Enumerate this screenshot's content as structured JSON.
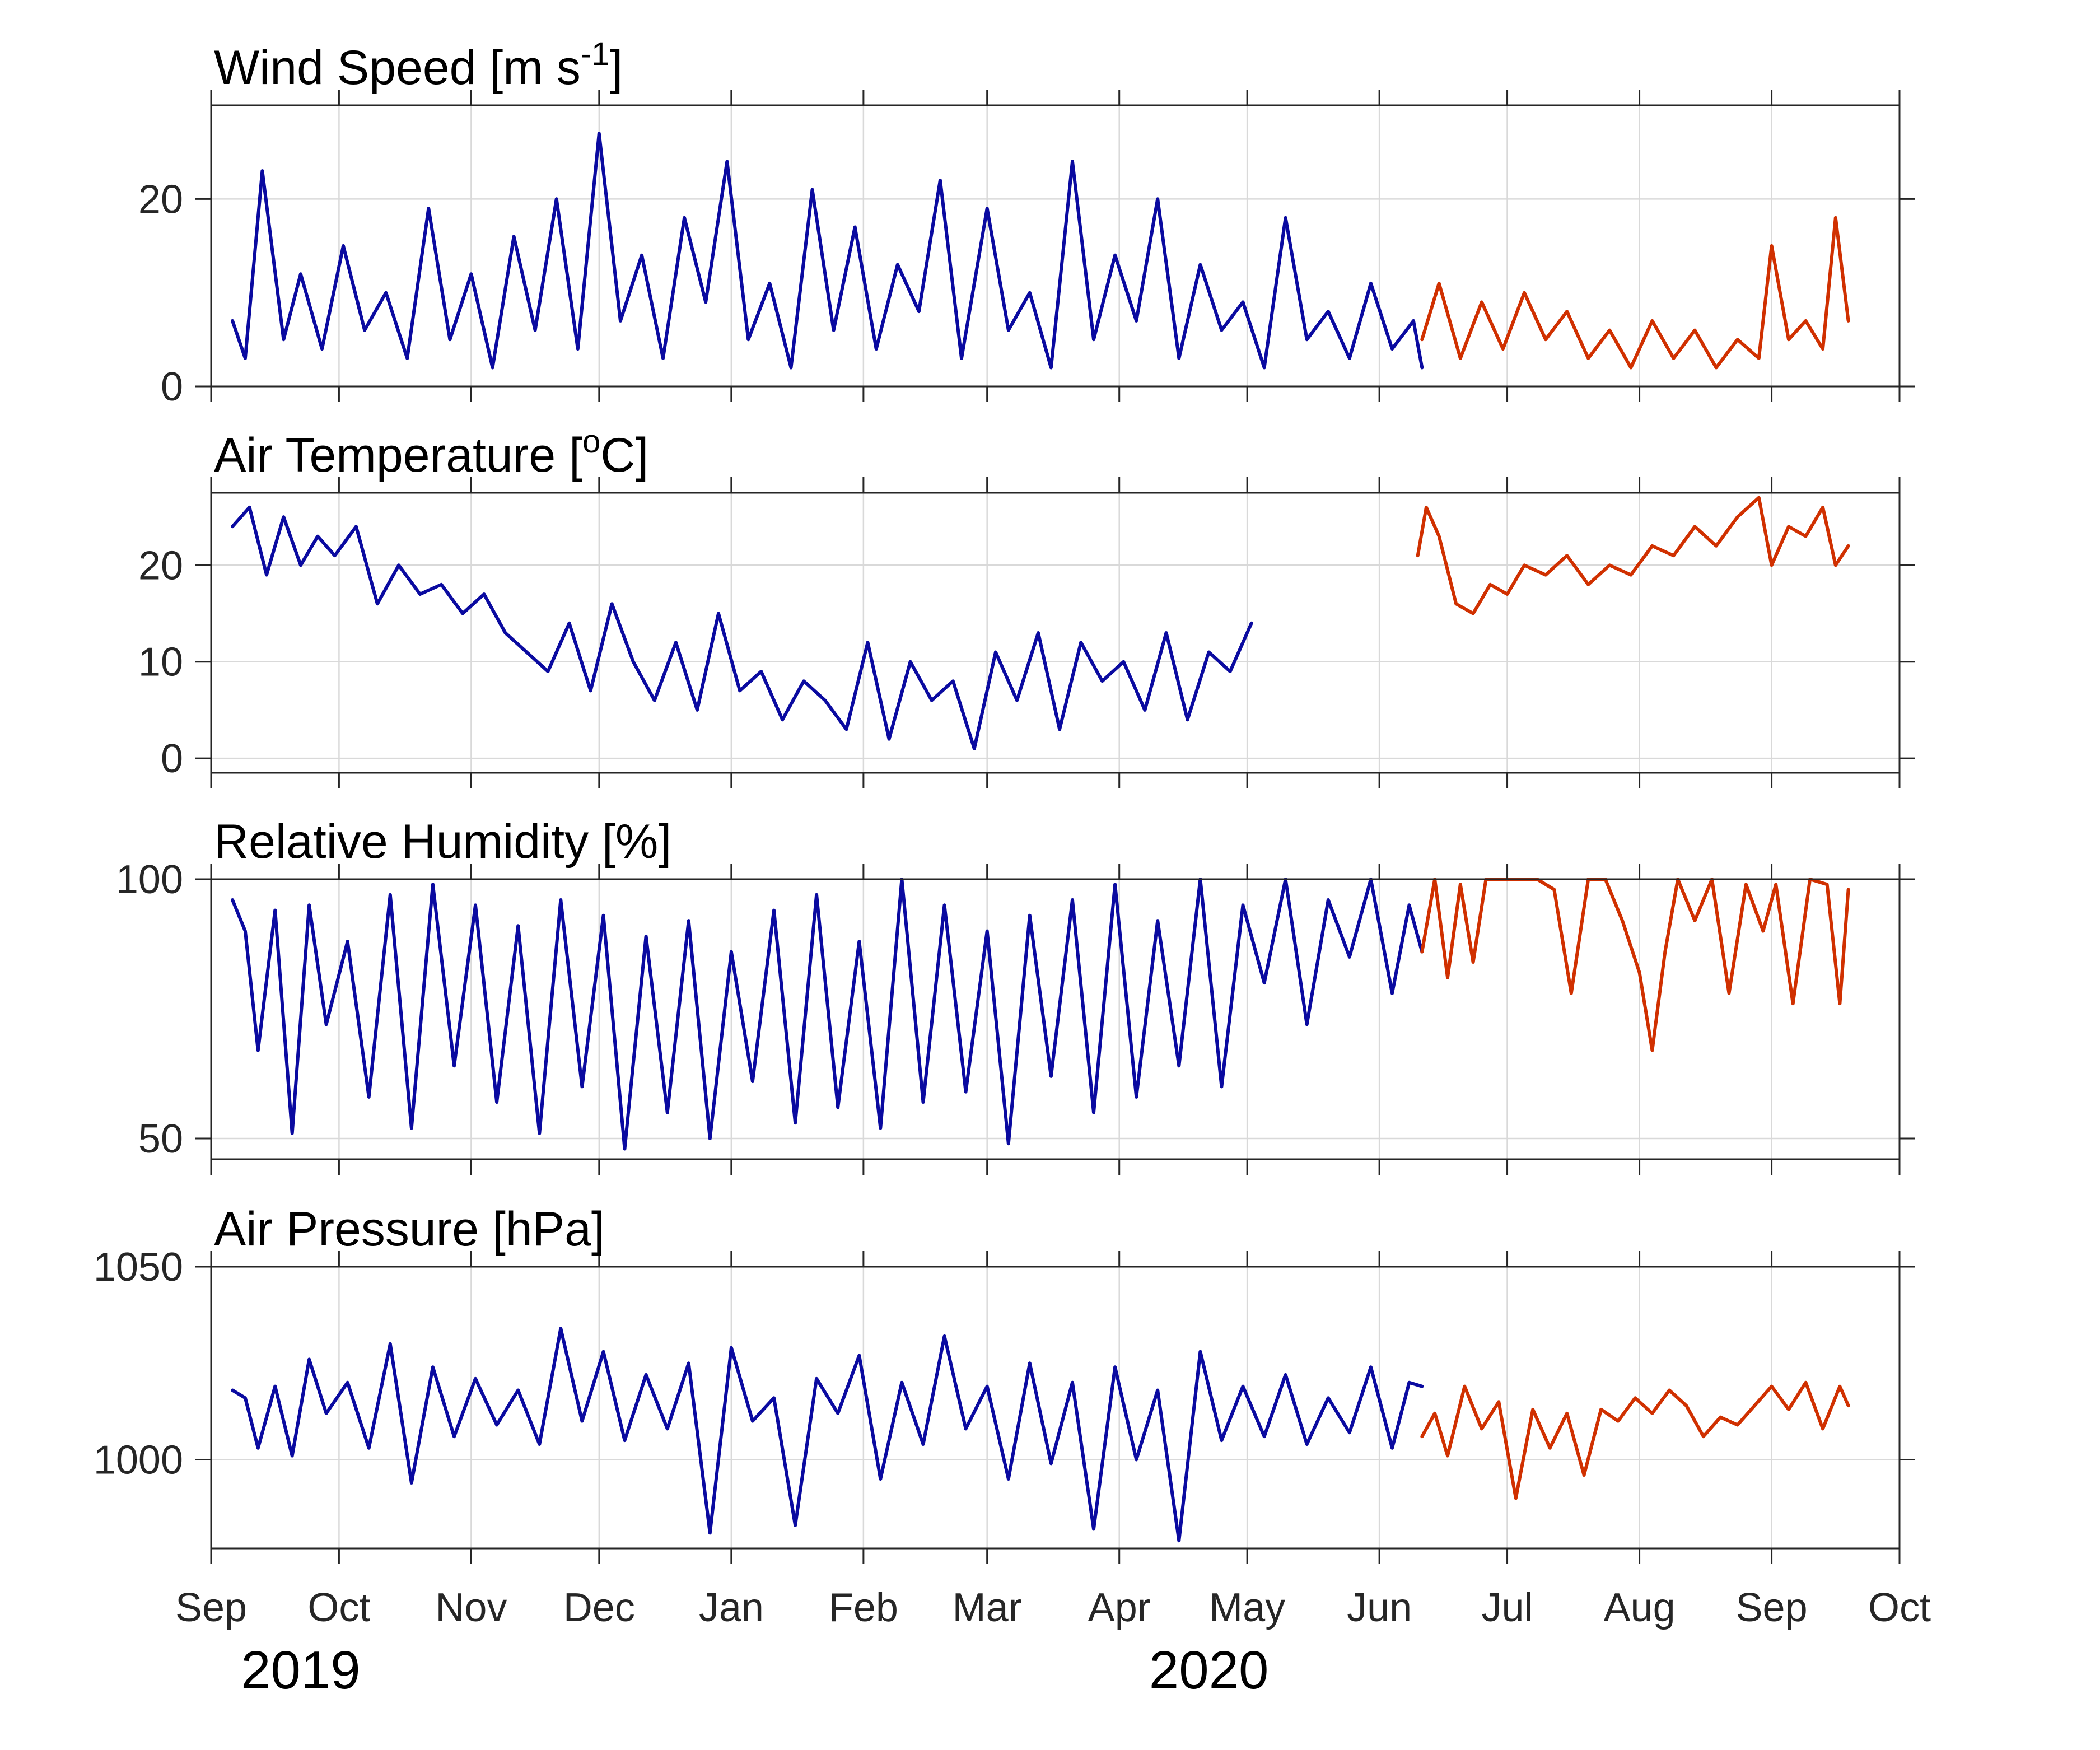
{
  "colors": {
    "station_1": "#0a0aa0",
    "station_2": "#d03000"
  },
  "x_axis": {
    "month_ticks": [
      "Sep",
      "Oct",
      "Nov",
      "Dec",
      "Jan",
      "Feb",
      "Mar",
      "Apr",
      "May",
      "Jun",
      "Jul",
      "Aug",
      "Sep",
      "Oct"
    ],
    "month_dates": [
      "2019-09-01",
      "2019-10-01",
      "2019-11-01",
      "2019-12-01",
      "2020-01-01",
      "2020-02-01",
      "2020-03-01",
      "2020-04-01",
      "2020-05-01",
      "2020-06-01",
      "2020-07-01",
      "2020-08-01",
      "2020-09-01",
      "2020-10-01"
    ],
    "year_labels": [
      {
        "label": "2019",
        "date": "2019-09-22"
      },
      {
        "label": "2020",
        "date": "2020-04-22"
      }
    ],
    "xlim": [
      "2019-09-01",
      "2020-10-01"
    ]
  },
  "chart_data": [
    {
      "type": "line",
      "title_main": "Wind Speed [m s",
      "title_sup": "-1",
      "title_end": "]",
      "ylim": [
        0,
        30
      ],
      "yticks": [
        0,
        20
      ],
      "series": [
        {
          "color": "station_1",
          "x": [
            "2019-09-06",
            "2019-09-09",
            "2019-09-13",
            "2019-09-18",
            "2019-09-22",
            "2019-09-27",
            "2019-10-02",
            "2019-10-07",
            "2019-10-12",
            "2019-10-17",
            "2019-10-22",
            "2019-10-27",
            "2019-11-01",
            "2019-11-06",
            "2019-11-11",
            "2019-11-16",
            "2019-11-21",
            "2019-11-26",
            "2019-12-01",
            "2019-12-06",
            "2019-12-11",
            "2019-12-16",
            "2019-12-21",
            "2019-12-26",
            "2019-12-31",
            "2020-01-05",
            "2020-01-10",
            "2020-01-15",
            "2020-01-20",
            "2020-01-25",
            "2020-01-30",
            "2020-02-04",
            "2020-02-09",
            "2020-02-14",
            "2020-02-19",
            "2020-02-24",
            "2020-03-01",
            "2020-03-06",
            "2020-03-11",
            "2020-03-16",
            "2020-03-21",
            "2020-03-26",
            "2020-03-31",
            "2020-04-05",
            "2020-04-10",
            "2020-04-15",
            "2020-04-20",
            "2020-04-25",
            "2020-04-30",
            "2020-05-05",
            "2020-05-10",
            "2020-05-15",
            "2020-05-20",
            "2020-05-25",
            "2020-05-30",
            "2020-06-04",
            "2020-06-09",
            "2020-06-11"
          ],
          "y": [
            7,
            3,
            23,
            5,
            12,
            4,
            15,
            6,
            10,
            3,
            19,
            5,
            12,
            2,
            16,
            6,
            20,
            4,
            27,
            7,
            14,
            3,
            18,
            9,
            24,
            5,
            11,
            2,
            21,
            6,
            17,
            4,
            13,
            8,
            22,
            3,
            19,
            6,
            10,
            2,
            24,
            5,
            14,
            7,
            20,
            3,
            13,
            6,
            9,
            2,
            18,
            5,
            8,
            3,
            11,
            4,
            7,
            2
          ]
        },
        {
          "color": "station_2",
          "x": [
            "2020-06-11",
            "2020-06-15",
            "2020-06-20",
            "2020-06-25",
            "2020-06-30",
            "2020-07-05",
            "2020-07-10",
            "2020-07-15",
            "2020-07-20",
            "2020-07-25",
            "2020-07-30",
            "2020-08-04",
            "2020-08-09",
            "2020-08-14",
            "2020-08-19",
            "2020-08-24",
            "2020-08-29",
            "2020-09-01",
            "2020-09-05",
            "2020-09-09",
            "2020-09-13",
            "2020-09-16",
            "2020-09-19"
          ],
          "y": [
            5,
            11,
            3,
            9,
            4,
            10,
            5,
            8,
            3,
            6,
            2,
            7,
            3,
            6,
            2,
            5,
            3,
            15,
            5,
            7,
            4,
            18,
            7
          ]
        }
      ]
    },
    {
      "type": "line",
      "title_main": "Air Temperature [",
      "title_sup": "o",
      "title_end": "C]",
      "ylim": [
        -1.5,
        27.5
      ],
      "yticks": [
        0,
        10,
        20
      ],
      "series": [
        {
          "color": "station_1",
          "x": [
            "2019-09-06",
            "2019-09-10",
            "2019-09-14",
            "2019-09-18",
            "2019-09-22",
            "2019-09-26",
            "2019-09-30",
            "2019-10-05",
            "2019-10-10",
            "2019-10-15",
            "2019-10-20",
            "2019-10-25",
            "2019-10-30",
            "2019-11-04",
            "2019-11-09",
            "2019-11-14",
            "2019-11-19",
            "2019-11-24",
            "2019-11-29",
            "2019-12-04",
            "2019-12-09",
            "2019-12-14",
            "2019-12-19",
            "2019-12-24",
            "2019-12-29",
            "2020-01-03",
            "2020-01-08",
            "2020-01-13",
            "2020-01-18",
            "2020-01-23",
            "2020-01-28",
            "2020-02-02",
            "2020-02-07",
            "2020-02-12",
            "2020-02-17",
            "2020-02-22",
            "2020-02-27",
            "2020-03-03",
            "2020-03-08",
            "2020-03-13",
            "2020-03-18",
            "2020-03-23",
            "2020-03-28",
            "2020-04-02",
            "2020-04-07",
            "2020-04-12",
            "2020-04-17",
            "2020-04-22",
            "2020-04-27",
            "2020-05-02"
          ],
          "y": [
            24,
            26,
            19,
            25,
            20,
            23,
            21,
            24,
            16,
            20,
            17,
            18,
            15,
            17,
            13,
            11,
            9,
            14,
            7,
            16,
            10,
            6,
            12,
            5,
            15,
            7,
            9,
            4,
            8,
            6,
            3,
            12,
            2,
            10,
            6,
            8,
            1,
            11,
            6,
            13,
            3,
            12,
            8,
            10,
            5,
            13,
            4,
            11,
            9,
            14
          ]
        },
        {
          "color": "station_2",
          "x": [
            "2020-06-10",
            "2020-06-12",
            "2020-06-15",
            "2020-06-19",
            "2020-06-23",
            "2020-06-27",
            "2020-07-01",
            "2020-07-05",
            "2020-07-10",
            "2020-07-15",
            "2020-07-20",
            "2020-07-25",
            "2020-07-30",
            "2020-08-04",
            "2020-08-09",
            "2020-08-14",
            "2020-08-19",
            "2020-08-24",
            "2020-08-29",
            "2020-09-01",
            "2020-09-05",
            "2020-09-09",
            "2020-09-13",
            "2020-09-16",
            "2020-09-19"
          ],
          "y": [
            21,
            26,
            23,
            16,
            15,
            18,
            17,
            20,
            19,
            21,
            18,
            20,
            19,
            22,
            21,
            24,
            22,
            25,
            27,
            20,
            24,
            23,
            26,
            20,
            22
          ]
        }
      ]
    },
    {
      "type": "line",
      "title_main": "Relative Humidity [%]",
      "title_sup": "",
      "title_end": "",
      "ylim": [
        46,
        100
      ],
      "yticks": [
        50,
        100
      ],
      "series": [
        {
          "color": "station_1",
          "x": [
            "2019-09-06",
            "2019-09-09",
            "2019-09-12",
            "2019-09-16",
            "2019-09-20",
            "2019-09-24",
            "2019-09-28",
            "2019-10-03",
            "2019-10-08",
            "2019-10-13",
            "2019-10-18",
            "2019-10-23",
            "2019-10-28",
            "2019-11-02",
            "2019-11-07",
            "2019-11-12",
            "2019-11-17",
            "2019-11-22",
            "2019-11-27",
            "2019-12-02",
            "2019-12-07",
            "2019-12-12",
            "2019-12-17",
            "2019-12-22",
            "2019-12-27",
            "2020-01-01",
            "2020-01-06",
            "2020-01-11",
            "2020-01-16",
            "2020-01-21",
            "2020-01-26",
            "2020-01-31",
            "2020-02-05",
            "2020-02-10",
            "2020-02-15",
            "2020-02-20",
            "2020-02-25",
            "2020-03-01",
            "2020-03-06",
            "2020-03-11",
            "2020-03-16",
            "2020-03-21",
            "2020-03-26",
            "2020-03-31",
            "2020-04-05",
            "2020-04-10",
            "2020-04-15",
            "2020-04-20",
            "2020-04-25",
            "2020-04-30",
            "2020-05-05",
            "2020-05-10",
            "2020-05-15",
            "2020-05-20",
            "2020-05-25",
            "2020-05-30",
            "2020-06-04",
            "2020-06-08",
            "2020-06-11"
          ],
          "y": [
            96,
            90,
            67,
            94,
            51,
            95,
            72,
            88,
            58,
            97,
            52,
            99,
            64,
            95,
            57,
            91,
            51,
            96,
            60,
            93,
            48,
            89,
            55,
            92,
            50,
            86,
            61,
            94,
            53,
            97,
            56,
            88,
            52,
            100,
            57,
            95,
            59,
            90,
            49,
            93,
            62,
            96,
            55,
            99,
            58,
            92,
            64,
            100,
            60,
            95,
            80,
            100,
            72,
            96,
            85,
            100,
            78,
            95,
            86
          ]
        },
        {
          "color": "station_2",
          "x": [
            "2020-06-11",
            "2020-06-14",
            "2020-06-17",
            "2020-06-20",
            "2020-06-23",
            "2020-06-26",
            "2020-06-30",
            "2020-07-04",
            "2020-07-08",
            "2020-07-12",
            "2020-07-16",
            "2020-07-20",
            "2020-07-24",
            "2020-07-28",
            "2020-08-01",
            "2020-08-04",
            "2020-08-07",
            "2020-08-10",
            "2020-08-14",
            "2020-08-18",
            "2020-08-22",
            "2020-08-26",
            "2020-08-30",
            "2020-09-02",
            "2020-09-06",
            "2020-09-10",
            "2020-09-14",
            "2020-09-17",
            "2020-09-19"
          ],
          "y": [
            86,
            100,
            81,
            99,
            84,
            100,
            100,
            100,
            100,
            98,
            78,
            100,
            100,
            92,
            82,
            67,
            86,
            100,
            92,
            100,
            78,
            99,
            90,
            99,
            76,
            100,
            99,
            76,
            98
          ]
        }
      ]
    },
    {
      "type": "line",
      "title_main": "Air Pressure [hPa]",
      "title_sup": "",
      "title_end": "",
      "ylim": [
        977,
        1050
      ],
      "yticks": [
        1000,
        1050
      ],
      "series": [
        {
          "color": "station_1",
          "x": [
            "2019-09-06",
            "2019-09-09",
            "2019-09-12",
            "2019-09-16",
            "2019-09-20",
            "2019-09-24",
            "2019-09-28",
            "2019-10-03",
            "2019-10-08",
            "2019-10-13",
            "2019-10-18",
            "2019-10-23",
            "2019-10-28",
            "2019-11-02",
            "2019-11-07",
            "2019-11-12",
            "2019-11-17",
            "2019-11-22",
            "2019-11-27",
            "2019-12-02",
            "2019-12-07",
            "2019-12-12",
            "2019-12-17",
            "2019-12-22",
            "2019-12-27",
            "2020-01-01",
            "2020-01-06",
            "2020-01-11",
            "2020-01-16",
            "2020-01-21",
            "2020-01-26",
            "2020-01-31",
            "2020-02-05",
            "2020-02-10",
            "2020-02-15",
            "2020-02-20",
            "2020-02-25",
            "2020-03-01",
            "2020-03-06",
            "2020-03-11",
            "2020-03-16",
            "2020-03-21",
            "2020-03-26",
            "2020-03-31",
            "2020-04-05",
            "2020-04-10",
            "2020-04-15",
            "2020-04-20",
            "2020-04-25",
            "2020-04-30",
            "2020-05-05",
            "2020-05-10",
            "2020-05-15",
            "2020-05-20",
            "2020-05-25",
            "2020-05-30",
            "2020-06-04",
            "2020-06-08",
            "2020-06-11"
          ],
          "y": [
            1018,
            1016,
            1003,
            1019,
            1001,
            1026,
            1012,
            1020,
            1003,
            1030,
            994,
            1024,
            1006,
            1021,
            1009,
            1018,
            1004,
            1034,
            1010,
            1028,
            1005,
            1022,
            1008,
            1025,
            981,
            1029,
            1010,
            1016,
            983,
            1021,
            1012,
            1027,
            995,
            1020,
            1004,
            1032,
            1008,
            1019,
            995,
            1025,
            999,
            1020,
            982,
            1024,
            1000,
            1018,
            979,
            1028,
            1005,
            1019,
            1006,
            1022,
            1004,
            1016,
            1007,
            1024,
            1003,
            1020,
            1019
          ]
        },
        {
          "color": "station_2",
          "x": [
            "2020-06-11",
            "2020-06-14",
            "2020-06-17",
            "2020-06-21",
            "2020-06-25",
            "2020-06-29",
            "2020-07-03",
            "2020-07-07",
            "2020-07-11",
            "2020-07-15",
            "2020-07-19",
            "2020-07-23",
            "2020-07-27",
            "2020-07-31",
            "2020-08-04",
            "2020-08-08",
            "2020-08-12",
            "2020-08-16",
            "2020-08-20",
            "2020-08-24",
            "2020-08-28",
            "2020-09-01",
            "2020-09-05",
            "2020-09-09",
            "2020-09-13",
            "2020-09-17",
            "2020-09-19"
          ],
          "y": [
            1006,
            1012,
            1001,
            1019,
            1008,
            1015,
            990,
            1013,
            1003,
            1012,
            996,
            1013,
            1010,
            1016,
            1012,
            1018,
            1014,
            1006,
            1011,
            1009,
            1014,
            1019,
            1013,
            1020,
            1008,
            1019,
            1014
          ]
        }
      ]
    }
  ]
}
